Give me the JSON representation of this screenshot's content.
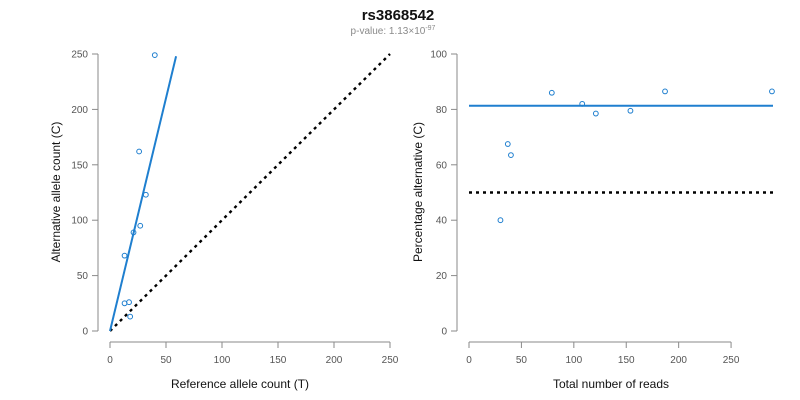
{
  "title": "rs3868542",
  "subtitle": {
    "prefix": "p-value: 1.13×10",
    "exponent": "-97"
  },
  "colors": {
    "accent": "#1f7fcf",
    "reference_line": "#000000",
    "axis": "#8a8a8a"
  },
  "chart_data": [
    {
      "type": "scatter",
      "name": "left",
      "xlabel": "Reference allele count (T)",
      "ylabel": "Alternative allele count (C)",
      "xlim": [
        0,
        250
      ],
      "ylim": [
        0,
        250
      ],
      "xticks": [
        0,
        50,
        100,
        150,
        200,
        250
      ],
      "yticks": [
        0,
        50,
        100,
        150,
        200,
        250
      ],
      "points": [
        {
          "x": 40,
          "y": 249
        },
        {
          "x": 26,
          "y": 162
        },
        {
          "x": 32,
          "y": 123
        },
        {
          "x": 27,
          "y": 95
        },
        {
          "x": 21,
          "y": 89
        },
        {
          "x": 13,
          "y": 68
        },
        {
          "x": 13,
          "y": 25
        },
        {
          "x": 17,
          "y": 26
        },
        {
          "x": 18,
          "y": 13
        }
      ],
      "fit_line": {
        "from": [
          0,
          0
        ],
        "to": [
          59,
          248
        ]
      },
      "reference_line": {
        "from": [
          0,
          0
        ],
        "to": [
          250,
          250
        ]
      }
    },
    {
      "type": "scatter",
      "name": "right",
      "xlabel": "Total number of reads",
      "ylabel": "Percentage alternative (C)",
      "xlim": [
        0,
        290
      ],
      "ylim": [
        0,
        100
      ],
      "xticks": [
        0,
        50,
        100,
        150,
        200,
        250
      ],
      "yticks": [
        0,
        20,
        40,
        60,
        80,
        100
      ],
      "points": [
        {
          "x": 30,
          "y": 40
        },
        {
          "x": 37,
          "y": 67.5
        },
        {
          "x": 40,
          "y": 63.5
        },
        {
          "x": 79,
          "y": 86
        },
        {
          "x": 108,
          "y": 82
        },
        {
          "x": 121,
          "y": 78.5
        },
        {
          "x": 154,
          "y": 79.5
        },
        {
          "x": 187,
          "y": 86.5
        },
        {
          "x": 289,
          "y": 86.5
        }
      ],
      "fit_line": {
        "from": [
          0,
          81.3
        ],
        "to": [
          290,
          81.3
        ]
      },
      "reference_line": {
        "from": [
          0,
          50
        ],
        "to": [
          290,
          50
        ]
      }
    }
  ]
}
